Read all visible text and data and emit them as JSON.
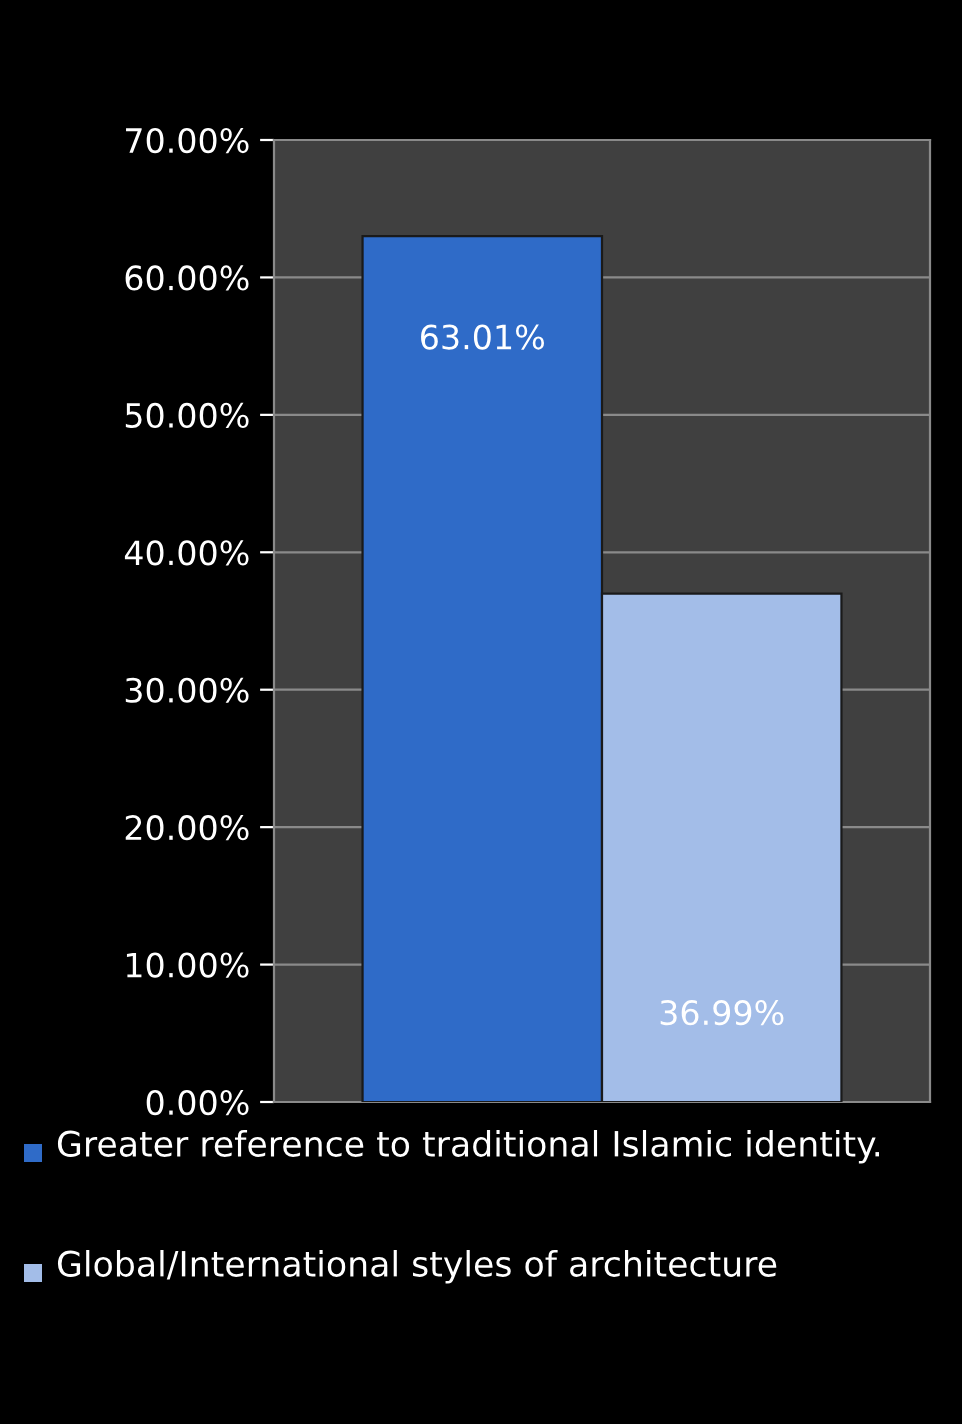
{
  "chart_data": {
    "type": "bar",
    "categories": [
      null
    ],
    "series": [
      {
        "name": "Greater reference to traditional Islamic identity.",
        "color": "#2f6bc8",
        "values": [
          63.01
        ],
        "value_labels": [
          "63.01%"
        ]
      },
      {
        "name": "Global/International styles of architecture",
        "color": "#a3bde8",
        "values": [
          36.99
        ],
        "value_labels": [
          "36.99%"
        ]
      }
    ],
    "ylim": [
      0,
      70
    ],
    "yticks": [
      {
        "value": 0,
        "label": "0.00%"
      },
      {
        "value": 10,
        "label": "10.00%"
      },
      {
        "value": 20,
        "label": "20.00%"
      },
      {
        "value": 30,
        "label": "30.00%"
      },
      {
        "value": 40,
        "label": "40.00%"
      },
      {
        "value": 50,
        "label": "50.00%"
      },
      {
        "value": 60,
        "label": "60.00%"
      },
      {
        "value": 70,
        "label": "70.00%"
      }
    ],
    "grid": "y",
    "legend": "bottom"
  }
}
